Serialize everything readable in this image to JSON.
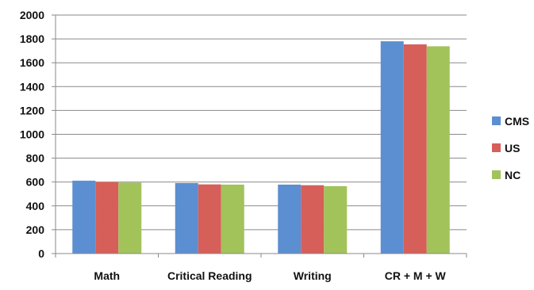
{
  "chart_data": {
    "type": "bar",
    "categories": [
      "Math",
      "Critical Reading",
      "Writing",
      "CR + M + W"
    ],
    "series": [
      {
        "name": "CMS",
        "values": [
          611,
          591,
          578,
          1780
        ],
        "color": "#5b8fd1"
      },
      {
        "name": "US",
        "values": [
          601,
          580,
          573,
          1754
        ],
        "color": "#d65f5a"
      },
      {
        "name": "NC",
        "values": [
          595,
          578,
          565,
          1738
        ],
        "color": "#a2c35a"
      }
    ],
    "title": "",
    "xlabel": "",
    "ylabel": "",
    "ylim": [
      0,
      2000
    ],
    "yticks": [
      "0",
      "200",
      "400",
      "600",
      "800",
      "1000",
      "1200",
      "1400",
      "1600",
      "1800",
      "2000"
    ],
    "grid": true,
    "legend_position": "right"
  }
}
